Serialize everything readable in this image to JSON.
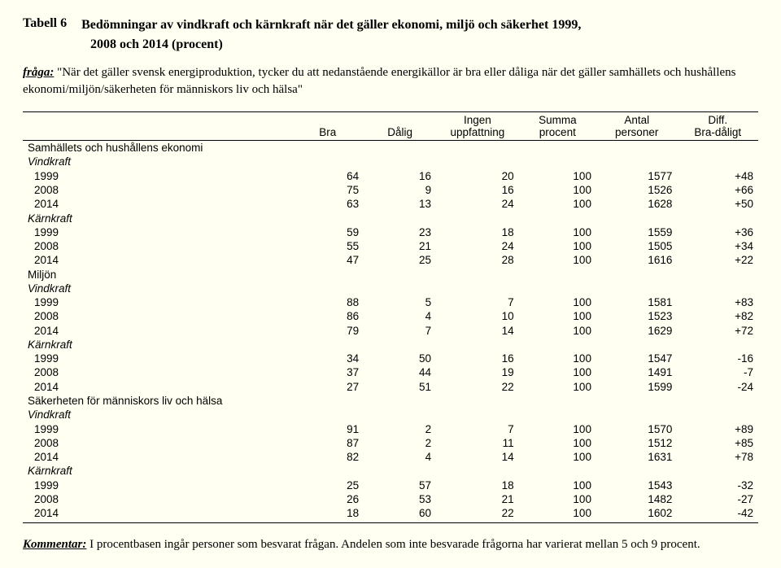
{
  "title": {
    "label": "Tabell 6",
    "line1": "Bedömningar av vindkraft och kärnkraft när det gäller ekonomi, miljö och säkerhet 1999,",
    "line2": "2008 och 2014 (procent)"
  },
  "question": {
    "label": "fråga:",
    "text": "\"När det gäller svensk energiproduktion, tycker du att nedanstående energikällor är bra eller dåliga när det gäller samhällets och hushållens ekonomi/miljön/säkerheten för människors liv och hälsa\""
  },
  "headers": {
    "bra": "Bra",
    "dalig": "Dålig",
    "ingen1": "Ingen",
    "ingen2": "uppfattning",
    "summa1": "Summa",
    "summa2": "procent",
    "antal1": "Antal",
    "antal2": "personer",
    "diff1": "Diff.",
    "diff2": "Bra-dåligt"
  },
  "sections": [
    {
      "name": "Samhällets och hushållens ekonomi",
      "groups": [
        {
          "name": "Vindkraft",
          "rows": [
            {
              "year": "1999",
              "bra": "64",
              "dalig": "16",
              "ingen": "20",
              "summa": "100",
              "antal": "1577",
              "diff": "+48"
            },
            {
              "year": "2008",
              "bra": "75",
              "dalig": "9",
              "ingen": "16",
              "summa": "100",
              "antal": "1526",
              "diff": "+66"
            },
            {
              "year": "2014",
              "bra": "63",
              "dalig": "13",
              "ingen": "24",
              "summa": "100",
              "antal": "1628",
              "diff": "+50"
            }
          ]
        },
        {
          "name": "Kärnkraft",
          "rows": [
            {
              "year": "1999",
              "bra": "59",
              "dalig": "23",
              "ingen": "18",
              "summa": "100",
              "antal": "1559",
              "diff": "+36"
            },
            {
              "year": "2008",
              "bra": "55",
              "dalig": "21",
              "ingen": "24",
              "summa": "100",
              "antal": "1505",
              "diff": "+34"
            },
            {
              "year": "2014",
              "bra": "47",
              "dalig": "25",
              "ingen": "28",
              "summa": "100",
              "antal": "1616",
              "diff": "+22"
            }
          ]
        }
      ]
    },
    {
      "name": "Miljön",
      "groups": [
        {
          "name": "Vindkraft",
          "rows": [
            {
              "year": "1999",
              "bra": "88",
              "dalig": "5",
              "ingen": "7",
              "summa": "100",
              "antal": "1581",
              "diff": "+83"
            },
            {
              "year": "2008",
              "bra": "86",
              "dalig": "4",
              "ingen": "10",
              "summa": "100",
              "antal": "1523",
              "diff": "+82"
            },
            {
              "year": "2014",
              "bra": "79",
              "dalig": "7",
              "ingen": "14",
              "summa": "100",
              "antal": "1629",
              "diff": "+72"
            }
          ]
        },
        {
          "name": "Kärnkraft",
          "rows": [
            {
              "year": "1999",
              "bra": "34",
              "dalig": "50",
              "ingen": "16",
              "summa": "100",
              "antal": "1547",
              "diff": "-16"
            },
            {
              "year": "2008",
              "bra": "37",
              "dalig": "44",
              "ingen": "19",
              "summa": "100",
              "antal": "1491",
              "diff": "-7"
            },
            {
              "year": "2014",
              "bra": "27",
              "dalig": "51",
              "ingen": "22",
              "summa": "100",
              "antal": "1599",
              "diff": "-24"
            }
          ]
        }
      ]
    },
    {
      "name": "Säkerheten för människors liv och hälsa",
      "groups": [
        {
          "name": "Vindkraft",
          "rows": [
            {
              "year": "1999",
              "bra": "91",
              "dalig": "2",
              "ingen": "7",
              "summa": "100",
              "antal": "1570",
              "diff": "+89"
            },
            {
              "year": "2008",
              "bra": "87",
              "dalig": "2",
              "ingen": "11",
              "summa": "100",
              "antal": "1512",
              "diff": "+85"
            },
            {
              "year": "2014",
              "bra": "82",
              "dalig": "4",
              "ingen": "14",
              "summa": "100",
              "antal": "1631",
              "diff": "+78"
            }
          ]
        },
        {
          "name": "Kärnkraft",
          "rows": [
            {
              "year": "1999",
              "bra": "25",
              "dalig": "57",
              "ingen": "18",
              "summa": "100",
              "antal": "1543",
              "diff": "-32"
            },
            {
              "year": "2008",
              "bra": "26",
              "dalig": "53",
              "ingen": "21",
              "summa": "100",
              "antal": "1482",
              "diff": "-27"
            },
            {
              "year": "2014",
              "bra": "18",
              "dalig": "60",
              "ingen": "22",
              "summa": "100",
              "antal": "1602",
              "diff": "-42"
            }
          ]
        }
      ]
    }
  ],
  "comment": {
    "label": "Kommentar:",
    "text": "I procentbasen ingår personer som besvarat frågan. Andelen som inte besvarade frågorna har varierat mellan 5 och 9 procent."
  }
}
